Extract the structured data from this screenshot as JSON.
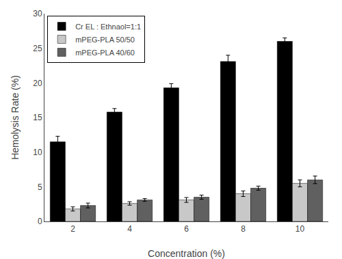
{
  "chart_data": {
    "type": "bar",
    "xlabel": "Concentration (%)",
    "ylabel": "Hemolysis Rate (%)",
    "categories": [
      2,
      4,
      6,
      8,
      10
    ],
    "series": [
      {
        "name": "Cr EL : Ethnaol=1:1",
        "color": "#000000",
        "values": [
          11.5,
          15.8,
          19.3,
          23.1,
          26.0
        ],
        "errors": [
          0.8,
          0.5,
          0.6,
          0.9,
          0.5
        ]
      },
      {
        "name": "mPEG-PLA 50/50",
        "color": "#c8c8c8",
        "values": [
          1.8,
          2.6,
          3.1,
          4.0,
          5.5
        ],
        "errors": [
          0.3,
          0.25,
          0.35,
          0.4,
          0.5
        ]
      },
      {
        "name": "mPEG-PLA 40/60",
        "color": "#606060",
        "values": [
          2.3,
          3.1,
          3.5,
          4.8,
          6.0
        ],
        "errors": [
          0.35,
          0.2,
          0.3,
          0.3,
          0.55
        ]
      }
    ],
    "ylim": [
      0,
      30
    ],
    "yticks": [
      0,
      5,
      10,
      15,
      20,
      25,
      30
    ],
    "grid": false,
    "legend": "upper left"
  }
}
